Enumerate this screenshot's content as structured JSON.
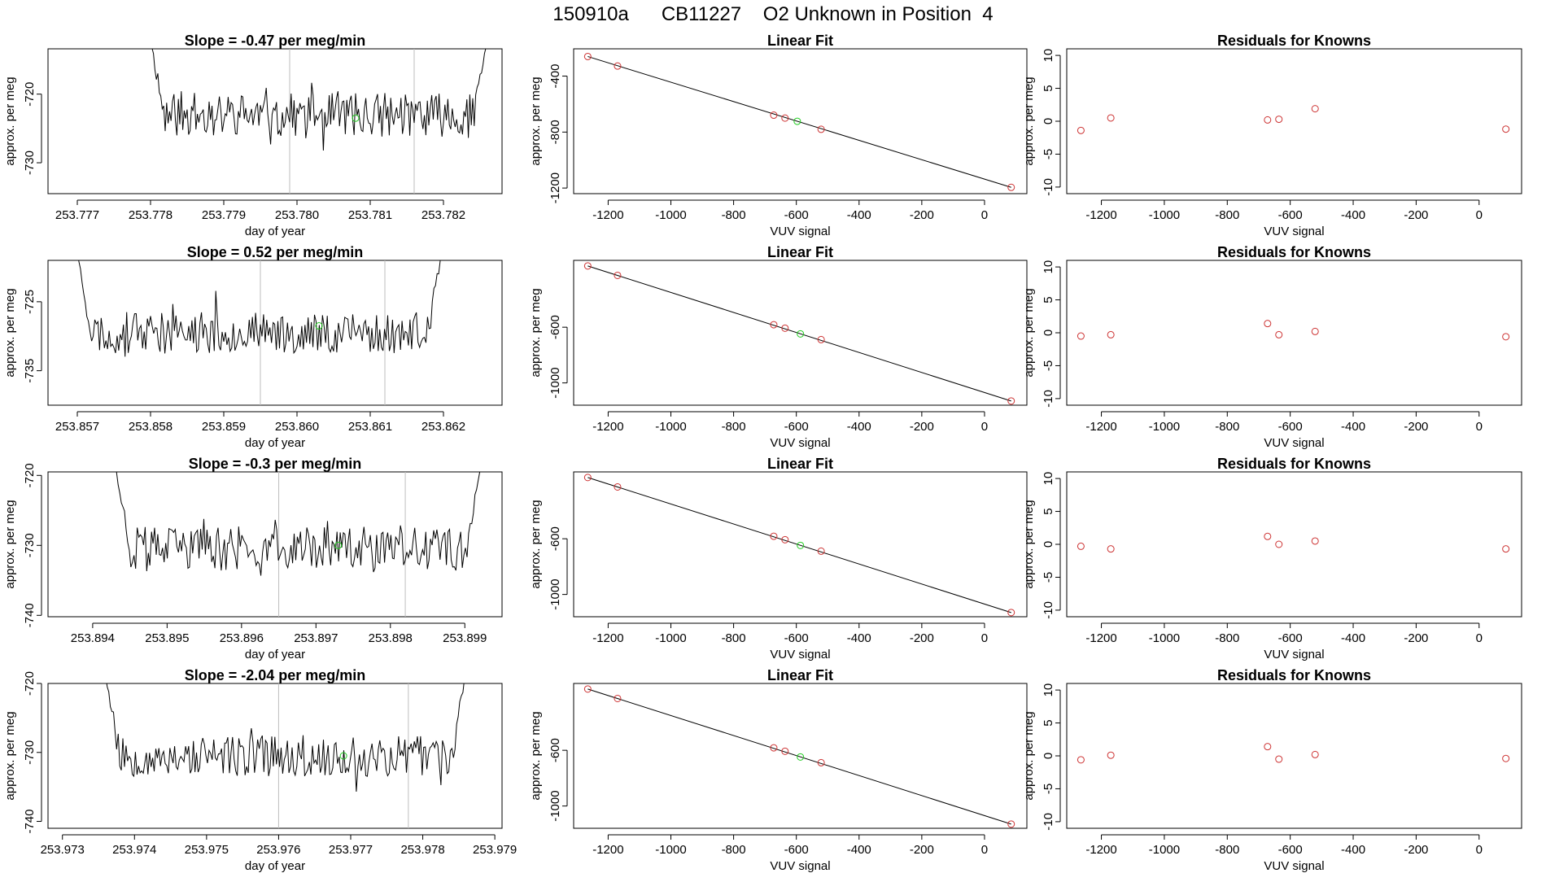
{
  "figure_title": "150910a      CB11227    O2 Unknown in Position  4",
  "colors": {
    "line": "#000000",
    "known": "#CD3333",
    "unknown": "#22CC22",
    "grid": "#BEBEBE"
  },
  "chart_data": [
    {
      "type": "line",
      "row": 0,
      "col": 0,
      "title": "Slope =  -0.47  per meg/min",
      "xlabel": "day of year",
      "ylabel": "approx. per meg",
      "xlim": [
        253.7766,
        253.7828
      ],
      "ylim": [
        -734.5,
        -713.4
      ],
      "xticks": [
        253.777,
        253.778,
        253.779,
        253.78,
        253.781,
        253.782
      ],
      "xticklabels": [
        "253.777",
        "253.778",
        "253.779",
        "253.780",
        "253.781",
        "253.782"
      ],
      "yticks": [
        -720,
        -730
      ],
      "yticklabels": [
        "-720",
        "-730"
      ],
      "vlines": [
        253.7799,
        253.7816
      ],
      "series": {
        "name": "signal",
        "x_start": 253.778,
        "x_end": 253.7826,
        "seed": 11,
        "base": -723,
        "amp": 3.2,
        "start_level": -712,
        "end_level": -712
      },
      "unknown_point": {
        "x": 253.7808,
        "y": -723.5
      }
    },
    {
      "type": "scatter",
      "row": 0,
      "col": 1,
      "title": "Linear Fit",
      "xlabel": "VUV signal",
      "ylabel": "approx. per meg",
      "xlim": [
        -1310,
        135
      ],
      "ylim": [
        -1240,
        -205
      ],
      "xticks": [
        -1200,
        -1000,
        -800,
        -600,
        -400,
        -200,
        0
      ],
      "xticklabels": [
        "-1200",
        "-1000",
        "-800",
        "-600",
        "-400",
        "-200",
        "0"
      ],
      "yticks": [
        -400,
        -800,
        -1200
      ],
      "yticklabels": [
        "-400",
        "-800",
        "-1200"
      ],
      "fit_line": {
        "x": [
          -1265,
          85
        ],
        "y": [
          -260,
          -1195
        ]
      },
      "knowns": {
        "x": [
          -1265,
          -1170,
          -672,
          -636,
          -521,
          85
        ],
        "y": [
          -260,
          -328,
          -679,
          -700,
          -780,
          -1195
        ]
      },
      "unknown": {
        "x": [
          -597
        ],
        "y": [
          -723
        ]
      }
    },
    {
      "type": "scatter",
      "row": 0,
      "col": 2,
      "title": "Residuals for Knowns",
      "xlabel": "VUV signal",
      "ylabel": "approx. per meg",
      "xlim": [
        -1310,
        135
      ],
      "ylim": [
        -11,
        11
      ],
      "xticks": [
        -1200,
        -1000,
        -800,
        -600,
        -400,
        -200,
        0
      ],
      "xticklabels": [
        "-1200",
        "-1000",
        "-800",
        "-600",
        "-400",
        "-200",
        "0"
      ],
      "yticks": [
        10,
        5,
        0,
        -5,
        -10
      ],
      "yticklabels": [
        "10",
        "5",
        "0",
        "-5",
        "-10"
      ],
      "knowns": {
        "x": [
          -1265,
          -1170,
          -672,
          -636,
          -521,
          85
        ],
        "y": [
          -1.4,
          0.5,
          0.2,
          0.3,
          1.9,
          -1.2
        ]
      }
    },
    {
      "type": "line",
      "row": 1,
      "col": 0,
      "title": "Slope =  0.52  per meg/min",
      "xlabel": "day of year",
      "ylabel": "approx. per meg",
      "xlim": [
        253.8566,
        253.8628
      ],
      "ylim": [
        -740,
        -719
      ],
      "xticks": [
        253.857,
        253.858,
        253.859,
        253.86,
        253.861,
        253.862
      ],
      "xticklabels": [
        "253.857",
        "253.858",
        "253.859",
        "253.860",
        "253.861",
        "253.862"
      ],
      "yticks": [
        -725,
        -735
      ],
      "yticklabels": [
        "-725",
        "-735"
      ],
      "vlines": [
        253.8595,
        253.8612
      ],
      "series": {
        "name": "signal",
        "x_start": 253.857,
        "x_end": 253.862,
        "seed": 23,
        "base": -729.5,
        "amp": 3.0,
        "start_level": -718,
        "end_level": -716
      },
      "unknown_point": {
        "x": 253.8603,
        "y": -728.5
      }
    },
    {
      "type": "scatter",
      "row": 1,
      "col": 1,
      "title": "Linear Fit",
      "xlabel": "VUV signal",
      "ylabel": "approx. per meg",
      "xlim": [
        -1310,
        135
      ],
      "ylim": [
        -1160,
        -120
      ],
      "xticks": [
        -1200,
        -1000,
        -800,
        -600,
        -400,
        -200,
        0
      ],
      "xticklabels": [
        "-1200",
        "-1000",
        "-800",
        "-600",
        "-400",
        "-200",
        "0"
      ],
      "yticks": [
        -600,
        -1000
      ],
      "yticklabels": [
        "-600",
        "-1000"
      ],
      "fit_line": {
        "x": [
          -1265,
          85
        ],
        "y": [
          -160,
          -1130
        ]
      },
      "knowns": {
        "x": [
          -1265,
          -1170,
          -672,
          -636,
          -521,
          85
        ],
        "y": [
          -160,
          -228,
          -582,
          -607,
          -689,
          -1130
        ]
      },
      "unknown": {
        "x": [
          -587
        ],
        "y": [
          -648
        ]
      }
    },
    {
      "type": "scatter",
      "row": 1,
      "col": 2,
      "title": "Residuals for Knowns",
      "xlabel": "VUV signal",
      "ylabel": "approx. per meg",
      "xlim": [
        -1310,
        135
      ],
      "ylim": [
        -11,
        11
      ],
      "xticks": [
        -1200,
        -1000,
        -800,
        -600,
        -400,
        -200,
        0
      ],
      "xticklabels": [
        "-1200",
        "-1000",
        "-800",
        "-600",
        "-400",
        "-200",
        "0"
      ],
      "yticks": [
        10,
        5,
        0,
        -5,
        -10
      ],
      "yticklabels": [
        "10",
        "5",
        "0",
        "-5",
        "-10"
      ],
      "knowns": {
        "x": [
          -1265,
          -1170,
          -672,
          -636,
          -521,
          85
        ],
        "y": [
          -0.5,
          -0.3,
          1.4,
          -0.3,
          0.2,
          -0.6
        ]
      }
    },
    {
      "type": "line",
      "row": 2,
      "col": 0,
      "title": "Slope =  -0.3  per meg/min",
      "xlabel": "day of year",
      "ylabel": "approx. per meg",
      "xlim": [
        253.8934,
        253.8995
      ],
      "ylim": [
        -740.2,
        -719.5
      ],
      "xticks": [
        253.894,
        253.895,
        253.896,
        253.897,
        253.898,
        253.899
      ],
      "xticklabels": [
        "253.894",
        "253.895",
        "253.896",
        "253.897",
        "253.898",
        "253.899"
      ],
      "yticks": [
        -720,
        -730,
        -740
      ],
      "yticklabels": [
        "-720",
        "-730",
        "-740"
      ],
      "vlines": [
        253.8965,
        253.8982
      ],
      "series": {
        "name": "signal",
        "x_start": 253.8943,
        "x_end": 253.8992,
        "seed": 37,
        "base": -730.5,
        "amp": 3.2,
        "start_level": -718,
        "end_level": -719.5
      },
      "unknown_point": {
        "x": 253.8973,
        "y": -730
      }
    },
    {
      "type": "scatter",
      "row": 2,
      "col": 1,
      "title": "Linear Fit",
      "xlabel": "VUV signal",
      "ylabel": "approx. per meg",
      "xlim": [
        -1310,
        135
      ],
      "ylim": [
        -1160,
        -120
      ],
      "xticks": [
        -1200,
        -1000,
        -800,
        -600,
        -400,
        -200,
        0
      ],
      "xticklabels": [
        "-1200",
        "-1000",
        "-800",
        "-600",
        "-400",
        "-200",
        "0"
      ],
      "yticks": [
        -600,
        -1000
      ],
      "yticklabels": [
        "-600",
        "-1000"
      ],
      "fit_line": {
        "x": [
          -1265,
          85
        ],
        "y": [
          -160,
          -1130
        ]
      },
      "knowns": {
        "x": [
          -1265,
          -1170,
          -672,
          -636,
          -521,
          85
        ],
        "y": [
          -160,
          -228,
          -582,
          -607,
          -689,
          -1130
        ]
      },
      "unknown": {
        "x": [
          -587
        ],
        "y": [
          -648
        ]
      }
    },
    {
      "type": "scatter",
      "row": 2,
      "col": 2,
      "title": "Residuals for Knowns",
      "xlabel": "VUV signal",
      "ylabel": "approx. per meg",
      "xlim": [
        -1310,
        135
      ],
      "ylim": [
        -11,
        11
      ],
      "xticks": [
        -1200,
        -1000,
        -800,
        -600,
        -400,
        -200,
        0
      ],
      "xticklabels": [
        "-1200",
        "-1000",
        "-800",
        "-600",
        "-400",
        "-200",
        "0"
      ],
      "yticks": [
        10,
        5,
        0,
        -5,
        -10
      ],
      "yticklabels": [
        "10",
        "5",
        "0",
        "-5",
        "-10"
      ],
      "knowns": {
        "x": [
          -1265,
          -1170,
          -672,
          -636,
          -521,
          85
        ],
        "y": [
          -0.3,
          -0.7,
          1.2,
          0.0,
          0.5,
          -0.7
        ]
      }
    },
    {
      "type": "line",
      "row": 3,
      "col": 0,
      "title": "Slope =  -2.04  per meg/min",
      "xlabel": "day of year",
      "ylabel": "approx. per meg",
      "xlim": [
        253.9728,
        253.9791
      ],
      "ylim": [
        -741,
        -720
      ],
      "xticks": [
        253.973,
        253.974,
        253.975,
        253.976,
        253.977,
        253.978,
        253.979
      ],
      "xticklabels": [
        "253.973",
        "253.974",
        "253.975",
        "253.976",
        "253.977",
        "253.978",
        "253.979"
      ],
      "yticks": [
        -720,
        -730,
        -740
      ],
      "yticklabels": [
        "-720",
        "-730",
        "-740"
      ],
      "vlines": [
        253.976,
        253.9778
      ],
      "series": {
        "name": "signal",
        "x_start": 253.9736,
        "x_end": 253.9786,
        "seed": 53,
        "base": -730.5,
        "amp": 3.0,
        "start_level": -719,
        "end_level": -718
      },
      "unknown_point": {
        "x": 253.9769,
        "y": -730.5
      }
    },
    {
      "type": "scatter",
      "row": 3,
      "col": 1,
      "title": "Linear Fit",
      "xlabel": "VUV signal",
      "ylabel": "approx. per meg",
      "xlim": [
        -1310,
        135
      ],
      "ylim": [
        -1160,
        -120
      ],
      "xticks": [
        -1200,
        -1000,
        -800,
        -600,
        -400,
        -200,
        0
      ],
      "xticklabels": [
        "-1200",
        "-1000",
        "-800",
        "-600",
        "-400",
        "-200",
        "0"
      ],
      "yticks": [
        -600,
        -1000
      ],
      "yticklabels": [
        "-600",
        "-1000"
      ],
      "fit_line": {
        "x": [
          -1265,
          85
        ],
        "y": [
          -160,
          -1130
        ]
      },
      "knowns": {
        "x": [
          -1265,
          -1170,
          -672,
          -636,
          -521,
          85
        ],
        "y": [
          -160,
          -228,
          -582,
          -607,
          -689,
          -1130
        ]
      },
      "unknown": {
        "x": [
          -587
        ],
        "y": [
          -648
        ]
      }
    },
    {
      "type": "scatter",
      "row": 3,
      "col": 2,
      "title": "Residuals for Knowns",
      "xlabel": "VUV signal",
      "ylabel": "approx. per meg",
      "xlim": [
        -1310,
        135
      ],
      "ylim": [
        -11,
        11
      ],
      "xticks": [
        -1200,
        -1000,
        -800,
        -600,
        -400,
        -200,
        0
      ],
      "xticklabels": [
        "-1200",
        "-1000",
        "-800",
        "-600",
        "-400",
        "-200",
        "0"
      ],
      "yticks": [
        10,
        5,
        0,
        -5,
        -10
      ],
      "yticklabels": [
        "10",
        "5",
        "0",
        "-5",
        "-10"
      ],
      "knowns": {
        "x": [
          -1265,
          -1170,
          -672,
          -636,
          -521,
          85
        ],
        "y": [
          -0.6,
          0.1,
          1.4,
          -0.5,
          0.2,
          -0.4
        ]
      }
    }
  ]
}
